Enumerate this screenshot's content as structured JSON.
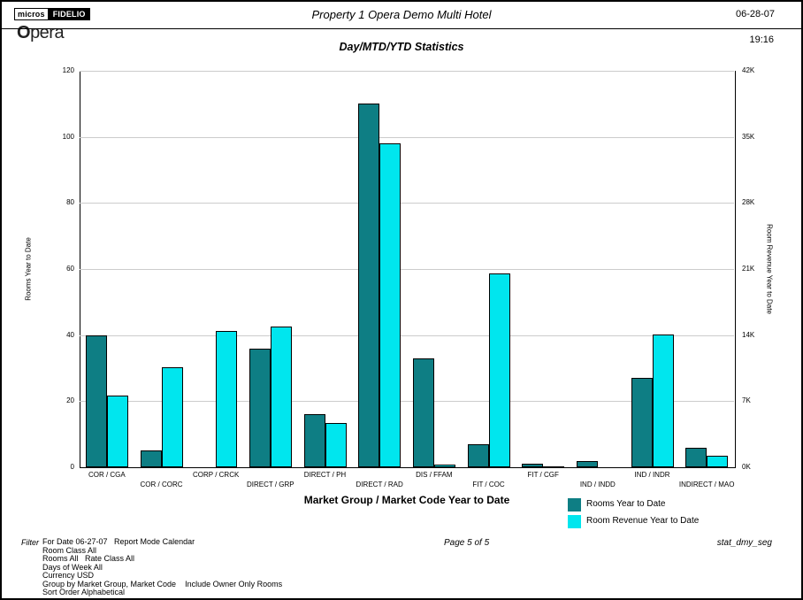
{
  "header": {
    "logo_micros": "micros",
    "logo_fidelio": "FIDELIO",
    "logo_opera": "Opera",
    "property_title": "Property 1 Opera Demo Multi Hotel",
    "date": "06-28-07",
    "time": "19:16"
  },
  "chart_data": {
    "type": "bar",
    "title": "Day/MTD/YTD Statistics",
    "xlabel": "Market Group / Market Code Year to Date",
    "grid": true,
    "legend_position": "bottom-right",
    "left_axis": {
      "label": "Rooms Year to Date",
      "max": 120,
      "ticks": [
        0,
        20,
        40,
        60,
        80,
        100,
        120
      ]
    },
    "right_axis": {
      "label": "Room Revenue Year to Date",
      "max": 42,
      "ticks": [
        "0K",
        "7K",
        "14K",
        "21K",
        "28K",
        "35K",
        "42K"
      ]
    },
    "categories": [
      "COR / CGA",
      "COR / CORC",
      "CORP / CRCK",
      "DIRECT / GRP",
      "DIRECT / PH",
      "DIRECT / RAD",
      "DIS / FFAM",
      "FIT / COC",
      "FIT / CGF",
      "IND / INDD",
      "IND / INDR",
      "INDIRECT / MAO"
    ],
    "series": [
      {
        "name": "Rooms Year to Date",
        "axis": "left",
        "color": "#0E7E84",
        "values": [
          40,
          5,
          0,
          36,
          16,
          110,
          33,
          7,
          1,
          2,
          27,
          6
        ]
      },
      {
        "name": "Room Revenue Year to Date",
        "axis": "right",
        "color": "#00E6EE",
        "unit": "K",
        "values": [
          7.6,
          10.6,
          14.4,
          14.9,
          4.7,
          34.3,
          0.3,
          20.5,
          0.1,
          0,
          14.1,
          1.2
        ]
      }
    ]
  },
  "footer": {
    "filter_label": "Filter",
    "filter_lines": [
      "For Date 06-27-07   Report Mode Calendar",
      "Room Class All",
      "Rooms All   Rate Class All",
      "Days of Week All",
      "Currency USD",
      "Group by Market Group, Market Code    Include Owner Only Rooms",
      "Sort Order Alphabetical"
    ],
    "page": "Page 5 of 5",
    "report_id": "stat_dmy_seg"
  }
}
